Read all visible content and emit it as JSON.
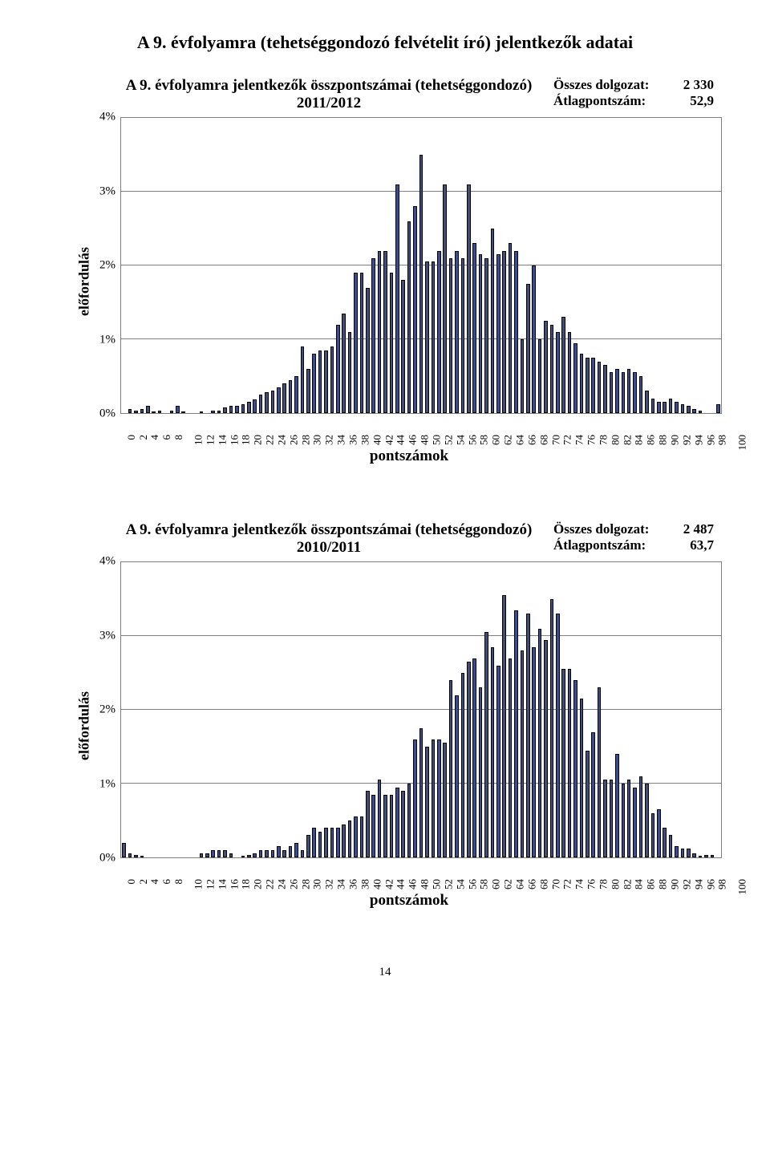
{
  "page": {
    "title": "A 9. évfolyamra (tehetséggondozó felvételit író) jelentkezők adatai",
    "page_number": "14"
  },
  "chart1": {
    "type": "bar",
    "title_line1": "A 9. évfolyamra jelentkezők összpontszámai (tehetséggondozó)",
    "title_line2": "2011/2012",
    "stat1_label": "Összes dolgozat:",
    "stat1_value": "2 330",
    "stat2_label": "Átlagpontszám:",
    "stat2_value": "52,9",
    "y_label": "előfordulás",
    "x_label": "pontszámok",
    "y_max_pct": 4.0,
    "y_ticks": [
      "0%",
      "1%",
      "2%",
      "3%",
      "4%"
    ],
    "x_ticks": [
      0,
      2,
      4,
      6,
      8,
      10,
      12,
      14,
      16,
      18,
      20,
      22,
      24,
      26,
      28,
      30,
      32,
      34,
      36,
      38,
      40,
      42,
      44,
      46,
      48,
      50,
      52,
      54,
      56,
      58,
      60,
      62,
      64,
      66,
      68,
      70,
      72,
      74,
      76,
      78,
      80,
      82,
      84,
      86,
      88,
      90,
      92,
      94,
      96,
      98,
      100
    ],
    "bar_color": "#3b4e87",
    "bar_border": "#000000",
    "grid_color": "#7f7f7f",
    "background": "#ffffff",
    "values": [
      0,
      0.05,
      0.03,
      0.05,
      0.1,
      0.02,
      0.03,
      0,
      0.03,
      0.1,
      0.02,
      0,
      0,
      0.02,
      0,
      0.03,
      0.03,
      0.08,
      0.1,
      0.1,
      0.12,
      0.15,
      0.18,
      0.25,
      0.28,
      0.3,
      0.35,
      0.4,
      0.45,
      0.5,
      0.9,
      0.6,
      0.8,
      0.85,
      0.85,
      0.9,
      1.2,
      1.35,
      1.1,
      1.9,
      1.9,
      1.7,
      2.1,
      2.2,
      2.2,
      1.9,
      3.1,
      1.8,
      2.6,
      2.8,
      3.5,
      2.05,
      2.05,
      2.2,
      3.1,
      2.1,
      2.2,
      2.1,
      3.1,
      2.3,
      2.15,
      2.1,
      2.5,
      2.15,
      2.2,
      2.3,
      2.2,
      1.0,
      1.75,
      2.0,
      1.0,
      1.25,
      1.2,
      1.1,
      1.3,
      1.1,
      0.95,
      0.8,
      0.75,
      0.75,
      0.7,
      0.65,
      0.55,
      0.6,
      0.55,
      0.6,
      0.55,
      0.5,
      0.3,
      0.2,
      0.15,
      0.15,
      0.2,
      0.15,
      0.12,
      0.1,
      0.05,
      0.03,
      0,
      0,
      0.12
    ]
  },
  "chart2": {
    "type": "bar",
    "title_line1": "A 9. évfolyamra jelentkezők összpontszámai (tehetséggondozó)",
    "title_line2": "2010/2011",
    "stat1_label": "Összes dolgozat:",
    "stat1_value": "2 487",
    "stat2_label": "Átlagpontszám:",
    "stat2_value": "63,7",
    "y_label": "előfordulás",
    "x_label": "pontszámok",
    "y_max_pct": 4.0,
    "y_ticks": [
      "0%",
      "1%",
      "2%",
      "3%",
      "4%"
    ],
    "x_ticks": [
      0,
      2,
      4,
      6,
      8,
      10,
      12,
      14,
      16,
      18,
      20,
      22,
      24,
      26,
      28,
      30,
      32,
      34,
      36,
      38,
      40,
      42,
      44,
      46,
      48,
      50,
      52,
      54,
      56,
      58,
      60,
      62,
      64,
      66,
      68,
      70,
      72,
      74,
      76,
      78,
      80,
      82,
      84,
      86,
      88,
      90,
      92,
      94,
      96,
      98,
      100
    ],
    "bar_color": "#3b4e87",
    "bar_border": "#000000",
    "grid_color": "#7f7f7f",
    "background": "#ffffff",
    "values": [
      0.2,
      0.05,
      0.03,
      0.02,
      0,
      0,
      0,
      0,
      0,
      0,
      0,
      0,
      0,
      0.05,
      0.05,
      0.1,
      0.1,
      0.1,
      0.05,
      0,
      0.02,
      0.03,
      0.05,
      0.1,
      0.1,
      0.1,
      0.15,
      0.1,
      0.15,
      0.2,
      0.1,
      0.3,
      0.4,
      0.35,
      0.4,
      0.4,
      0.4,
      0.45,
      0.5,
      0.55,
      0.55,
      0.9,
      0.85,
      1.05,
      0.85,
      0.85,
      0.95,
      0.9,
      1.0,
      1.6,
      1.75,
      1.5,
      1.6,
      1.6,
      1.55,
      2.4,
      2.2,
      2.5,
      2.65,
      2.7,
      2.3,
      3.05,
      2.85,
      2.6,
      3.55,
      2.7,
      3.35,
      2.8,
      3.3,
      2.85,
      3.1,
      2.95,
      3.5,
      3.3,
      2.55,
      2.55,
      2.4,
      2.15,
      1.45,
      1.7,
      2.3,
      1.05,
      1.05,
      1.4,
      1.0,
      1.05,
      0.95,
      1.1,
      1.0,
      0.6,
      0.65,
      0.4,
      0.3,
      0.15,
      0.12,
      0.12,
      0.05,
      0.02,
      0.03,
      0.03,
      0
    ]
  }
}
